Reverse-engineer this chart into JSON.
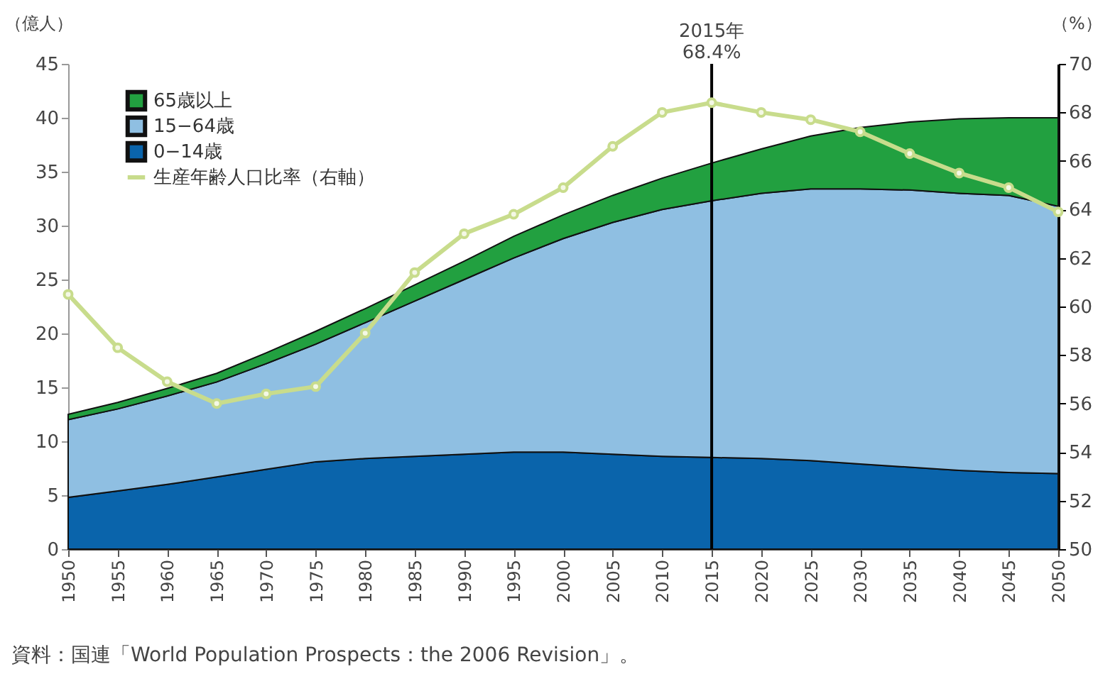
{
  "chart_data": {
    "type": "area",
    "stacked": true,
    "x": [
      1950,
      1955,
      1960,
      1965,
      1970,
      1975,
      1980,
      1985,
      1990,
      1995,
      2000,
      2005,
      2010,
      2015,
      2020,
      2025,
      2030,
      2035,
      2040,
      2045,
      2050
    ],
    "series": [
      {
        "name": "0−14歳",
        "color": "#0a64ab",
        "values": [
          4.8,
          5.4,
          6.0,
          6.7,
          7.4,
          8.1,
          8.4,
          8.6,
          8.8,
          9.0,
          9.0,
          8.8,
          8.6,
          8.5,
          8.4,
          8.2,
          7.9,
          7.6,
          7.3,
          7.1,
          7.0
        ]
      },
      {
        "name": "15−64歳",
        "color": "#8fbfe2",
        "values": [
          7.2,
          7.6,
          8.2,
          8.8,
          9.8,
          10.9,
          12.6,
          14.4,
          16.2,
          18.0,
          19.8,
          21.5,
          22.9,
          23.8,
          24.6,
          25.2,
          25.5,
          25.7,
          25.7,
          25.7,
          24.8
        ]
      },
      {
        "name": "65歳以上",
        "color": "#22a040",
        "values": [
          0.5,
          0.6,
          0.7,
          0.8,
          1.0,
          1.2,
          1.3,
          1.5,
          1.7,
          2.0,
          2.2,
          2.5,
          2.9,
          3.5,
          4.1,
          4.9,
          5.7,
          6.3,
          6.9,
          7.2,
          8.2
        ]
      },
      {
        "name": "生産年齢人口比率（右軸）",
        "type": "line",
        "axis": "y2",
        "color": "#c8dc8c",
        "marker": "circle",
        "values": [
          60.5,
          58.3,
          56.9,
          56.0,
          56.4,
          56.7,
          58.9,
          61.4,
          63.0,
          63.8,
          64.9,
          66.6,
          68.0,
          68.4,
          68.0,
          67.7,
          67.2,
          66.3,
          65.5,
          64.9,
          63.9
        ]
      }
    ],
    "xlim": [
      1950,
      2050
    ],
    "xticks": [
      1950,
      1955,
      1960,
      1965,
      1970,
      1975,
      1980,
      1985,
      1990,
      1995,
      2000,
      2005,
      2010,
      2015,
      2020,
      2025,
      2030,
      2035,
      2040,
      2045,
      2050
    ],
    "ylim": [
      0,
      45
    ],
    "yticks": [
      0,
      5,
      10,
      15,
      20,
      25,
      30,
      35,
      40,
      45
    ],
    "y2lim": [
      50,
      70
    ],
    "y2ticks": [
      50,
      52,
      54,
      56,
      58,
      60,
      62,
      64,
      66,
      68,
      70
    ],
    "ylabel": "（億人）",
    "y2label": "（%）",
    "legend": "top left",
    "ref_lines": [
      {
        "axis": "x",
        "value": 2015,
        "color": "#000000"
      }
    ],
    "annotations": [
      "2015年\n68.4%",
      "資料：国連「World Population Prospects：the 2006 Revision」。"
    ]
  }
}
